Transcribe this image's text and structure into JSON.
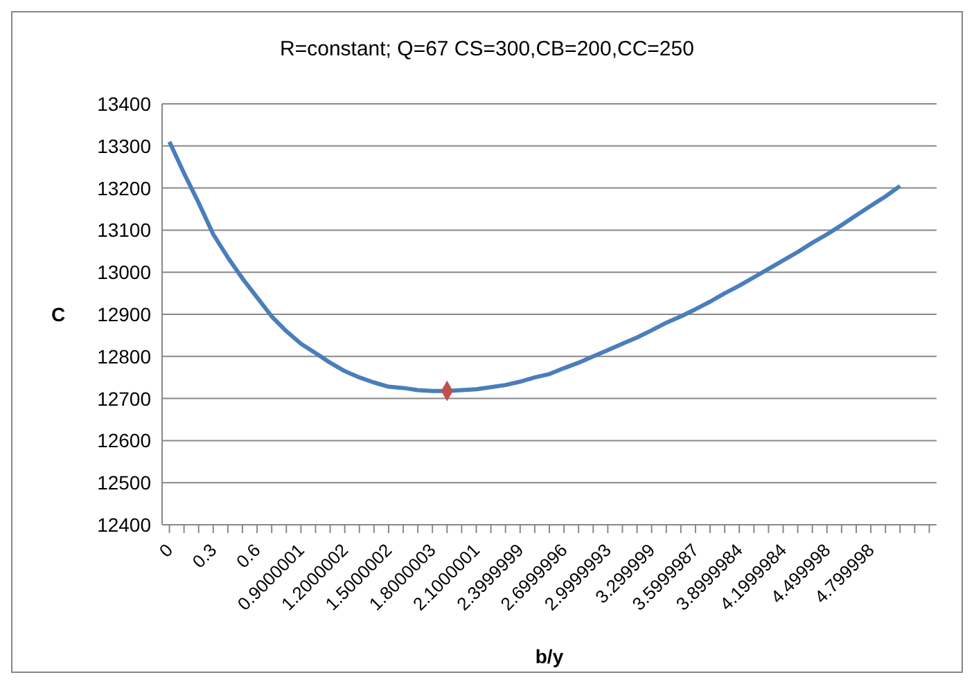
{
  "chart_data": {
    "type": "line",
    "title": "R=constant;  Q=67 CS=300,CB=200,CC=250",
    "xlabel": "b/y",
    "ylabel": "C",
    "categories": [
      "0",
      null,
      null,
      "0.3",
      null,
      null,
      "0.6",
      null,
      null,
      "0.9000001",
      null,
      null,
      "1.2000002",
      null,
      null,
      "1.5000002",
      null,
      null,
      "1.8000003",
      null,
      null,
      "2.1000001",
      null,
      null,
      "2.3999999",
      null,
      null,
      "2.6999996",
      null,
      null,
      "2.9999993",
      null,
      null,
      "3.299999",
      null,
      null,
      "3.5999987",
      null,
      null,
      "3.8999984",
      null,
      null,
      "4.1999984",
      null,
      null,
      "4.499998",
      null,
      null,
      "4.799998",
      null,
      null,
      null,
      null
    ],
    "series": [
      {
        "color": "#4a7ebb",
        "values": [
          13310,
          13235,
          13165,
          13090,
          13035,
          12985,
          12940,
          12895,
          12860,
          12830,
          12808,
          12785,
          12765,
          12750,
          12738,
          12728,
          12725,
          12720,
          12718,
          12718,
          12720,
          12722,
          12727,
          12732,
          12740,
          12750,
          12758,
          12772,
          12785,
          12800,
          12815,
          12830,
          12845,
          12862,
          12880,
          12895,
          12912,
          12930,
          12950,
          12968,
          12988,
          13008,
          13028,
          13048,
          13070,
          13090,
          13112,
          13135,
          13158,
          13180,
          13205,
          null,
          null
        ]
      },
      {
        "type": "scatter",
        "color": "#c0504d",
        "marker": "diamond",
        "values": [
          null,
          null,
          null,
          null,
          null,
          null,
          null,
          null,
          null,
          null,
          null,
          null,
          null,
          null,
          null,
          null,
          null,
          null,
          null,
          12718,
          null,
          null,
          null,
          null,
          null,
          null,
          null,
          null,
          null,
          null,
          null,
          null,
          null,
          null,
          null,
          null,
          null,
          null,
          null,
          null,
          null,
          null,
          null,
          null,
          null,
          null,
          null,
          null,
          null,
          null,
          null,
          null,
          null
        ]
      }
    ],
    "ylim": [
      12400,
      13400
    ],
    "yticks": [
      12400,
      12500,
      12600,
      12700,
      12800,
      12900,
      13000,
      13100,
      13200,
      13300,
      13400
    ],
    "grid": "y",
    "marker": "none",
    "line_style": "solid"
  }
}
